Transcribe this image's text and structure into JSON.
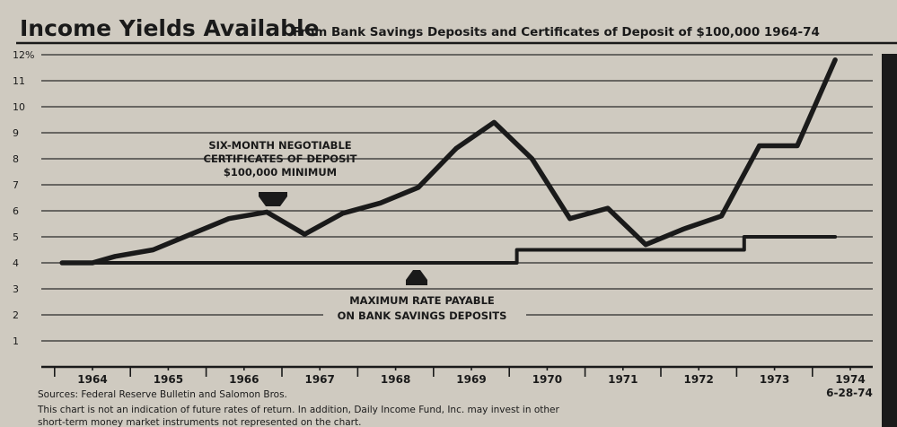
{
  "chart_data": {
    "type": "line",
    "title": "Income Yields Available",
    "subtitle": "From Bank Savings Deposits and Certificates of Deposit of $100,000 1964-74",
    "xlabel": "",
    "ylabel": "",
    "ylim": [
      0,
      12
    ],
    "y_ticks": [
      "1",
      "2",
      "3",
      "4",
      "5",
      "6",
      "7",
      "8",
      "9",
      "10",
      "11",
      "12%"
    ],
    "x_ticks": [
      "1964",
      "1965",
      "1966",
      "1967",
      "1968",
      "1969",
      "1970",
      "1971",
      "1972",
      "1973",
      "1974"
    ],
    "end_date_label": "6-28-74",
    "grid": true,
    "series": [
      {
        "name": "SIX-MONTH NEGOTIABLE CERTIFICATES OF DEPOSIT $100,000 MINIMUM",
        "points": [
          [
            1963.6,
            4.0
          ],
          [
            1964.0,
            4.0
          ],
          [
            1964.3,
            4.25
          ],
          [
            1964.8,
            4.5
          ],
          [
            1965.3,
            5.1
          ],
          [
            1965.8,
            5.7
          ],
          [
            1966.3,
            5.95
          ],
          [
            1966.8,
            5.1
          ],
          [
            1967.3,
            5.9
          ],
          [
            1967.8,
            6.3
          ],
          [
            1968.3,
            6.9
          ],
          [
            1968.8,
            8.4
          ],
          [
            1969.3,
            9.4
          ],
          [
            1969.8,
            8.0
          ],
          [
            1970.3,
            5.7
          ],
          [
            1970.8,
            6.1
          ],
          [
            1971.3,
            4.7
          ],
          [
            1971.8,
            5.3
          ],
          [
            1972.3,
            5.8
          ],
          [
            1972.8,
            8.5
          ],
          [
            1973.3,
            8.5
          ],
          [
            1973.8,
            11.8
          ]
        ]
      },
      {
        "name": "MAXIMUM RATE PAYABLE ON BANK SAVINGS DEPOSITS",
        "points": [
          [
            1963.6,
            4.0
          ],
          [
            1969.6,
            4.0
          ],
          [
            1969.6,
            4.5
          ],
          [
            1972.6,
            4.5
          ],
          [
            1972.6,
            5.0
          ],
          [
            1973.8,
            5.0
          ]
        ]
      }
    ],
    "annotations": {
      "cd_label": [
        "SIX-MONTH NEGOTIABLE",
        "CERTIFICATES OF DEPOSIT",
        "$100,000 MINIMUM"
      ],
      "savings_label": [
        "MAXIMUM RATE PAYABLE",
        "ON BANK SAVINGS DEPOSITS"
      ]
    },
    "sources": "Sources: Federal Reserve Bulletin and Salomon Bros.",
    "disclaimer": [
      "This chart is not an indication of future rates of return. In addition, Daily Income Fund, Inc. may invest in other",
      "short-term money market instruments not represented on the chart."
    ]
  }
}
